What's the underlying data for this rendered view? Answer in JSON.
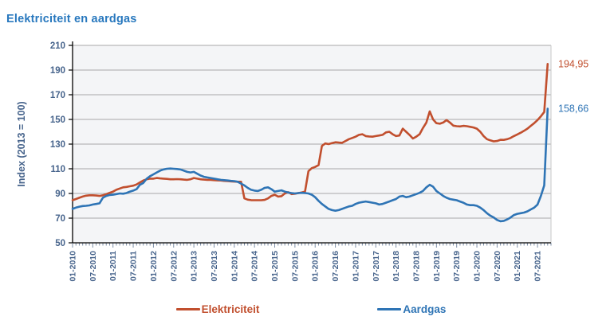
{
  "title": "Elektriciteit en aardgas",
  "colors": {
    "title": "#2878be",
    "axis_text": "#47648c",
    "axis_line": "#000000",
    "grid": "#a8a8a8",
    "plot_border": "#c9c9c9",
    "plot_bg": "#f4f5f7",
    "electricity": "#c14f2e",
    "gas": "#2e74b5"
  },
  "chart_data": {
    "type": "line",
    "title": "Elektriciteit en aardgas",
    "ylabel": "Index (2013 = 100)",
    "ylim": [
      50,
      210
    ],
    "ytick_step": 20,
    "grid": true,
    "legend_position": "bottom",
    "x_tick_interval_months": 6,
    "x_tick_labels": [
      "01-2010",
      "07-2010",
      "01-2011",
      "07-2011",
      "01-2012",
      "07-2012",
      "01-2013",
      "07-2013",
      "01-2014",
      "07-2014",
      "01-2015",
      "07-2015",
      "01-2016",
      "07-2016",
      "01-2017",
      "07-2017",
      "01-2018",
      "07-2018",
      "01-2019",
      "07-2019",
      "01-2020",
      "07-2020",
      "01-2021",
      "07-2021"
    ],
    "series": [
      {
        "name": "Elektriciteit",
        "color": "#c14f2e",
        "end_label": "194,95",
        "values": [
          84.5,
          85.5,
          86.5,
          87.5,
          88.2,
          88.5,
          88.5,
          88.3,
          88.0,
          88.5,
          89.5,
          90.5,
          91.5,
          93.0,
          94.0,
          95.0,
          95.3,
          95.8,
          96.3,
          97.3,
          99.0,
          100.5,
          101.5,
          102.0,
          102.0,
          102.5,
          102.2,
          102.0,
          101.8,
          101.5,
          101.5,
          101.6,
          101.5,
          101.2,
          101.0,
          101.5,
          102.5,
          102.0,
          101.5,
          101.2,
          101.0,
          101.0,
          100.8,
          100.6,
          100.5,
          100.2,
          100.0,
          99.8,
          99.6,
          99.5,
          99.5,
          86.0,
          85.0,
          84.6,
          84.5,
          84.5,
          84.5,
          84.8,
          86.0,
          88.0,
          89.0,
          87.5,
          87.8,
          90.0,
          91.0,
          89.5,
          89.8,
          90.3,
          90.8,
          91.5,
          108.0,
          110.5,
          111.5,
          113.0,
          128.5,
          130.5,
          130.0,
          130.8,
          131.5,
          131.2,
          131.0,
          132.5,
          134.0,
          135.0,
          136.0,
          137.5,
          138.0,
          136.5,
          136.2,
          136.0,
          136.5,
          137.0,
          137.5,
          139.5,
          140.0,
          138.0,
          136.5,
          137.0,
          142.5,
          140.0,
          137.5,
          134.5,
          136.0,
          138.0,
          143.0,
          147.5,
          156.5,
          150.0,
          147.0,
          146.5,
          147.5,
          149.5,
          147.5,
          145.0,
          144.5,
          144.3,
          144.8,
          144.5,
          144.0,
          143.5,
          142.5,
          140.0,
          136.5,
          134.0,
          133.0,
          132.2,
          132.5,
          133.5,
          133.4,
          134.0,
          135.0,
          136.5,
          137.8,
          139.2,
          140.8,
          142.5,
          144.8,
          147.0,
          149.5,
          152.5,
          156.0,
          194.95
        ]
      },
      {
        "name": "Aardgas",
        "color": "#2e74b5",
        "end_label": "158,66",
        "values": [
          77.5,
          78.5,
          79.3,
          79.8,
          80.0,
          80.3,
          81.0,
          81.5,
          82.0,
          86.5,
          88.0,
          88.8,
          89.0,
          89.5,
          90.0,
          89.8,
          90.3,
          91.5,
          92.3,
          93.5,
          97.0,
          98.5,
          102.0,
          104.0,
          105.5,
          107.0,
          108.5,
          109.5,
          110.0,
          110.2,
          110.0,
          109.8,
          109.5,
          108.5,
          107.5,
          107.0,
          107.5,
          106.0,
          104.5,
          103.5,
          103.0,
          102.5,
          102.0,
          101.5,
          101.0,
          100.8,
          100.5,
          100.2,
          100.0,
          99.5,
          98.0,
          96.5,
          94.5,
          93.0,
          92.3,
          92.0,
          93.0,
          94.5,
          95.0,
          93.5,
          91.5,
          92.0,
          92.5,
          91.5,
          90.8,
          90.3,
          90.0,
          90.3,
          90.5,
          90.3,
          90.0,
          89.0,
          87.0,
          84.0,
          81.5,
          79.5,
          77.5,
          76.5,
          76.0,
          76.5,
          77.5,
          78.5,
          79.5,
          80.0,
          81.5,
          82.5,
          83.0,
          83.5,
          83.0,
          82.5,
          82.0,
          81.0,
          81.5,
          82.5,
          83.5,
          84.5,
          85.5,
          87.5,
          88.0,
          87.0,
          87.5,
          88.5,
          89.5,
          90.5,
          92.0,
          95.0,
          97.0,
          95.5,
          92.0,
          90.0,
          88.0,
          86.5,
          85.5,
          85.0,
          84.5,
          83.5,
          82.5,
          81.0,
          80.5,
          80.5,
          80.0,
          78.5,
          76.5,
          74.0,
          72.0,
          70.5,
          68.5,
          67.5,
          67.8,
          69.0,
          70.5,
          72.5,
          73.5,
          74.0,
          74.5,
          75.5,
          77.0,
          78.5,
          81.0,
          88.0,
          96.5,
          158.66
        ]
      }
    ]
  },
  "legend": {
    "electricity_label": "Elektriciteit",
    "gas_label": "Aardgas"
  }
}
